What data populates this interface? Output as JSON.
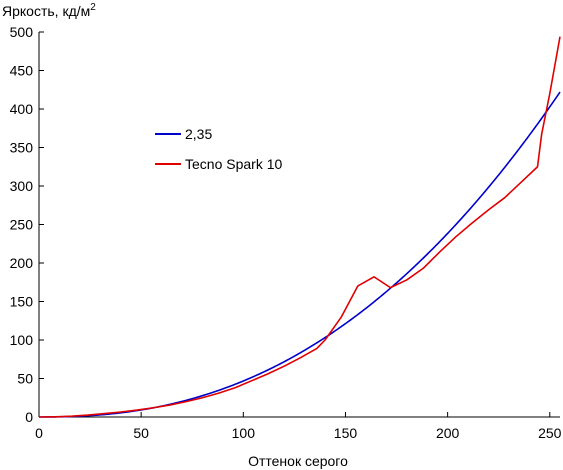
{
  "chart_data": {
    "type": "line",
    "title": "",
    "ylabel": "Яркость, кд/м",
    "ylabel_superscript": "2",
    "xlabel": "Оттенок серого",
    "xlim": [
      0,
      255
    ],
    "ylim": [
      0,
      500
    ],
    "xticks": [
      0,
      50,
      100,
      150,
      200,
      250
    ],
    "yticks": [
      0,
      50,
      100,
      150,
      200,
      250,
      300,
      350,
      400,
      450,
      500
    ],
    "grid": false,
    "legend": {
      "placement": "upper-left-center"
    },
    "series": [
      {
        "name": "2,35",
        "color": "#0000cc",
        "formula": "gamma",
        "gamma": 2.35,
        "max_y": 422
      },
      {
        "name": "Tecno Spark 10",
        "color": "#e00000",
        "x": [
          0,
          8,
          16,
          24,
          32,
          40,
          48,
          56,
          64,
          72,
          80,
          88,
          96,
          104,
          112,
          120,
          128,
          136,
          140,
          148,
          156,
          164,
          172,
          180,
          188,
          196,
          204,
          212,
          220,
          228,
          236,
          244,
          246,
          250,
          255
        ],
        "y": [
          0,
          0.3,
          1,
          2.5,
          4.5,
          6.5,
          9,
          12,
          15.5,
          20,
          25,
          31,
          38,
          47,
          56,
          66,
          77,
          89,
          100,
          130,
          170,
          182,
          168,
          178,
          193,
          214,
          234,
          252,
          269,
          285,
          305,
          325,
          367,
          420,
          494
        ]
      }
    ]
  }
}
